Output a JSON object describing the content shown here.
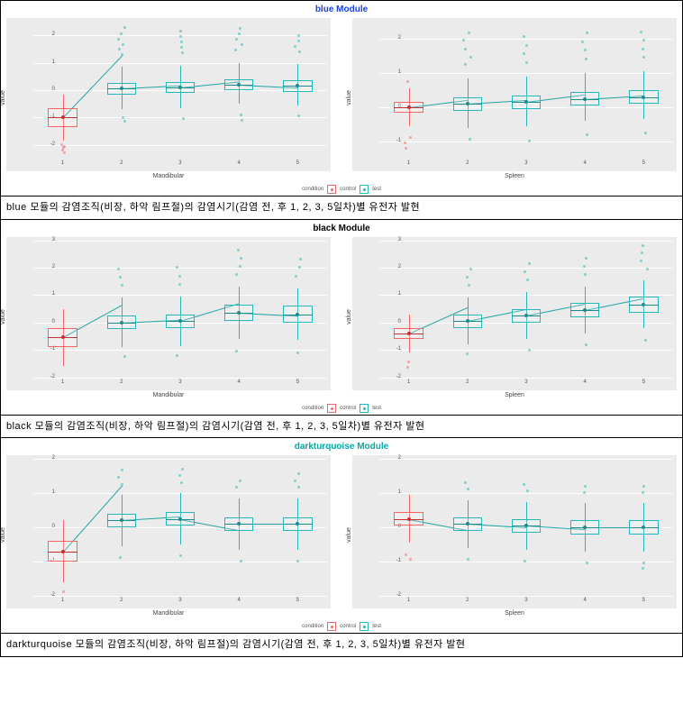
{
  "colors": {
    "control": "#f56565",
    "test": "#24b8b8",
    "plot_bg": "#ebebeb",
    "grid": "#ffffff"
  },
  "legend": {
    "label": "condition",
    "items": [
      "control",
      "test"
    ]
  },
  "y_label": "value",
  "modules": [
    {
      "id": "blue",
      "title": "blue Module",
      "title_class": "blue",
      "caption": "blue 모듈의 감염조직(비장, 하악 림프절)의 감염시기(감염 전, 후 1, 2, 3, 5일차)별 유전자 발현",
      "subplots": [
        {
          "x_label": "Mandibular",
          "ylim": [
            -2.5,
            2.5
          ],
          "yticks": [
            -2,
            -1,
            0,
            1,
            2
          ],
          "x_positions": [
            1,
            2,
            3,
            4,
            5
          ],
          "boxes": [
            {
              "x": 1,
              "cond": "control",
              "q1": -1.35,
              "med": -1.0,
              "q3": -0.65,
              "lw": -1.85,
              "uw": -0.15,
              "outliers": [
                -2.25,
                -2.15,
                -2.05,
                -2.0,
                -1.95
              ]
            },
            {
              "x": 2,
              "cond": "test",
              "q1": -0.15,
              "med": 0.05,
              "q3": 0.25,
              "lw": -0.7,
              "uw": 0.85,
              "outliers": [
                1.35,
                1.55,
                1.7,
                1.9,
                2.1,
                2.35,
                -0.95,
                -1.1
              ]
            },
            {
              "x": 3,
              "cond": "test",
              "q1": -0.1,
              "med": 0.1,
              "q3": 0.3,
              "lw": -0.65,
              "uw": 0.9,
              "outliers": [
                1.4,
                1.6,
                1.8,
                2.0,
                2.2,
                -1.0
              ]
            },
            {
              "x": 4,
              "cond": "test",
              "q1": 0.0,
              "med": 0.2,
              "q3": 0.4,
              "lw": -0.5,
              "uw": 1.0,
              "outliers": [
                1.5,
                1.7,
                1.9,
                2.1,
                2.3,
                -0.85,
                -1.05
              ]
            },
            {
              "x": 5,
              "cond": "test",
              "q1": -0.05,
              "med": 0.15,
              "q3": 0.35,
              "lw": -0.55,
              "uw": 0.95,
              "outliers": [
                1.45,
                1.65,
                1.85,
                2.05,
                -0.9
              ]
            }
          ]
        },
        {
          "x_label": "Spleen",
          "ylim": [
            -1.5,
            2.5
          ],
          "yticks": [
            -1,
            0,
            1,
            2
          ],
          "x_positions": [
            1,
            2,
            3,
            4,
            5
          ],
          "boxes": [
            {
              "x": 1,
              "cond": "control",
              "q1": -0.15,
              "med": 0.0,
              "q3": 0.15,
              "lw": -0.55,
              "uw": 0.55,
              "outliers": [
                -0.85,
                -1.0,
                -1.15,
                0.8
              ]
            },
            {
              "x": 2,
              "cond": "test",
              "q1": -0.1,
              "med": 0.1,
              "q3": 0.3,
              "lw": -0.6,
              "uw": 0.85,
              "outliers": [
                1.3,
                1.5,
                1.75,
                2.0,
                2.2,
                -0.9
              ]
            },
            {
              "x": 3,
              "cond": "test",
              "q1": -0.05,
              "med": 0.15,
              "q3": 0.35,
              "lw": -0.55,
              "uw": 0.9,
              "outliers": [
                1.35,
                1.6,
                1.85,
                2.1,
                -0.95
              ]
            },
            {
              "x": 4,
              "cond": "test",
              "q1": 0.05,
              "med": 0.25,
              "q3": 0.45,
              "lw": -0.4,
              "uw": 1.0,
              "outliers": [
                1.45,
                1.7,
                1.95,
                2.2,
                -0.75
              ]
            },
            {
              "x": 5,
              "cond": "test",
              "q1": 0.1,
              "med": 0.3,
              "q3": 0.5,
              "lw": -0.35,
              "uw": 1.05,
              "outliers": [
                1.5,
                1.75,
                2.0,
                2.25,
                -0.7
              ]
            }
          ]
        }
      ]
    },
    {
      "id": "black",
      "title": "black Module",
      "title_class": "black",
      "caption": "black 모듈의 감염조직(비장, 하악 림프절)의 감염시기(감염 전, 후 1, 2, 3, 5일차)별 유전자 발현",
      "subplots": [
        {
          "x_label": "Mandibular",
          "ylim": [
            -2,
            3
          ],
          "yticks": [
            -2,
            -1,
            0,
            1,
            2,
            3
          ],
          "x_positions": [
            1,
            2,
            3,
            4,
            5
          ],
          "boxes": [
            {
              "x": 1,
              "cond": "control",
              "q1": -0.9,
              "med": -0.55,
              "q3": -0.2,
              "lw": -1.6,
              "uw": 0.5,
              "outliers": []
            },
            {
              "x": 2,
              "cond": "test",
              "q1": -0.25,
              "med": 0.0,
              "q3": 0.25,
              "lw": -0.9,
              "uw": 0.9,
              "outliers": [
                1.4,
                1.7,
                2.0,
                -1.2
              ]
            },
            {
              "x": 3,
              "cond": "test",
              "q1": -0.2,
              "med": 0.05,
              "q3": 0.3,
              "lw": -0.85,
              "uw": 0.95,
              "outliers": [
                1.45,
                1.75,
                2.05,
                -1.15
              ]
            },
            {
              "x": 4,
              "cond": "test",
              "q1": 0.05,
              "med": 0.35,
              "q3": 0.65,
              "lw": -0.6,
              "uw": 1.3,
              "outliers": [
                1.8,
                2.1,
                2.4,
                2.7,
                -1.0
              ]
            },
            {
              "x": 5,
              "cond": "test",
              "q1": 0.0,
              "med": 0.3,
              "q3": 0.6,
              "lw": -0.65,
              "uw": 1.25,
              "outliers": [
                1.75,
                2.05,
                2.35,
                -1.05
              ]
            }
          ]
        },
        {
          "x_label": "Spleen",
          "ylim": [
            -2,
            3
          ],
          "yticks": [
            -2,
            -1,
            0,
            1,
            2,
            3
          ],
          "x_positions": [
            1,
            2,
            3,
            4,
            5
          ],
          "boxes": [
            {
              "x": 1,
              "cond": "control",
              "q1": -0.6,
              "med": -0.4,
              "q3": -0.2,
              "lw": -1.1,
              "uw": 0.3,
              "outliers": [
                -1.4,
                -1.6
              ]
            },
            {
              "x": 2,
              "cond": "test",
              "q1": -0.2,
              "med": 0.05,
              "q3": 0.3,
              "lw": -0.8,
              "uw": 0.9,
              "outliers": [
                1.4,
                1.7,
                2.0,
                -1.1
              ]
            },
            {
              "x": 3,
              "cond": "test",
              "q1": 0.0,
              "med": 0.25,
              "q3": 0.5,
              "lw": -0.6,
              "uw": 1.1,
              "outliers": [
                1.6,
                1.9,
                2.2,
                -0.95
              ]
            },
            {
              "x": 4,
              "cond": "test",
              "q1": 0.2,
              "med": 0.45,
              "q3": 0.7,
              "lw": -0.4,
              "uw": 1.3,
              "outliers": [
                1.8,
                2.1,
                2.4,
                -0.75
              ]
            },
            {
              "x": 5,
              "cond": "test",
              "q1": 0.35,
              "med": 0.65,
              "q3": 0.95,
              "lw": -0.2,
              "uw": 1.55,
              "outliers": [
                2.0,
                2.3,
                2.6,
                2.85,
                -0.6
              ]
            }
          ]
        }
      ]
    },
    {
      "id": "darkturquoise",
      "title": "darkturquoise Module",
      "title_class": "turq",
      "caption": "darkturquoise 모듈의 감염조직(비장, 하악 림프절)의 감염시기(감염 전, 후 1, 2, 3, 5일차)별 유전자 발현",
      "subplots": [
        {
          "x_label": "Mandibular",
          "ylim": [
            -2,
            2
          ],
          "yticks": [
            -2,
            -1,
            0,
            1,
            2
          ],
          "x_positions": [
            1,
            2,
            3,
            4,
            5
          ],
          "boxes": [
            {
              "x": 1,
              "cond": "control",
              "q1": -1.0,
              "med": -0.7,
              "q3": -0.4,
              "lw": -1.6,
              "uw": 0.2,
              "outliers": [
                -1.85
              ]
            },
            {
              "x": 2,
              "cond": "test",
              "q1": 0.0,
              "med": 0.2,
              "q3": 0.4,
              "lw": -0.55,
              "uw": 0.95,
              "outliers": [
                1.3,
                1.5,
                1.7,
                -0.85
              ]
            },
            {
              "x": 3,
              "cond": "test",
              "q1": 0.05,
              "med": 0.25,
              "q3": 0.45,
              "lw": -0.5,
              "uw": 1.0,
              "outliers": [
                1.35,
                1.55,
                1.75,
                -0.8
              ]
            },
            {
              "x": 4,
              "cond": "test",
              "q1": -0.1,
              "med": 0.1,
              "q3": 0.3,
              "lw": -0.65,
              "uw": 0.85,
              "outliers": [
                1.2,
                1.4,
                -0.95
              ]
            },
            {
              "x": 5,
              "cond": "test",
              "q1": -0.1,
              "med": 0.1,
              "q3": 0.3,
              "lw": -0.65,
              "uw": 0.85,
              "outliers": [
                1.2,
                1.4,
                1.6,
                -0.95
              ]
            }
          ]
        },
        {
          "x_label": "Spleen",
          "ylim": [
            -2,
            2
          ],
          "yticks": [
            -2,
            -1,
            0,
            1,
            2
          ],
          "x_positions": [
            1,
            2,
            3,
            4,
            5
          ],
          "boxes": [
            {
              "x": 1,
              "cond": "control",
              "q1": 0.05,
              "med": 0.25,
              "q3": 0.45,
              "lw": -0.45,
              "uw": 0.95,
              "outliers": [
                -0.75,
                -0.9
              ]
            },
            {
              "x": 2,
              "cond": "test",
              "q1": -0.1,
              "med": 0.1,
              "q3": 0.3,
              "lw": -0.6,
              "uw": 0.8,
              "outliers": [
                1.15,
                1.35,
                -0.9
              ]
            },
            {
              "x": 3,
              "cond": "test",
              "q1": -0.15,
              "med": 0.05,
              "q3": 0.25,
              "lw": -0.65,
              "uw": 0.75,
              "outliers": [
                1.1,
                1.3,
                -0.95
              ]
            },
            {
              "x": 4,
              "cond": "test",
              "q1": -0.2,
              "med": 0.0,
              "q3": 0.2,
              "lw": -0.7,
              "uw": 0.7,
              "outliers": [
                1.05,
                1.25,
                -1.0
              ]
            },
            {
              "x": 5,
              "cond": "test",
              "q1": -0.2,
              "med": 0.0,
              "q3": 0.2,
              "lw": -0.7,
              "uw": 0.7,
              "outliers": [
                1.05,
                1.25,
                -1.0,
                -1.15
              ]
            }
          ]
        }
      ]
    }
  ]
}
